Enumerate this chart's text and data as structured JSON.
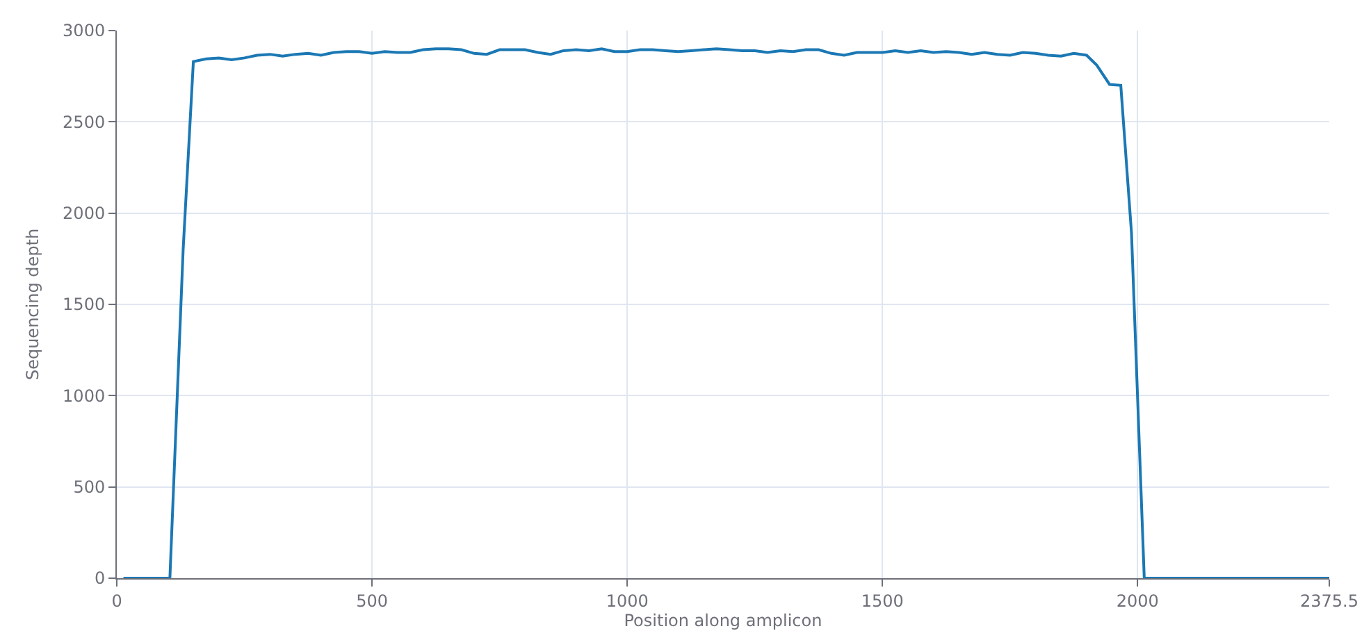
{
  "chart_data": {
    "type": "line",
    "xlabel": "Position along amplicon",
    "ylabel": "Sequencing depth",
    "xlim": [
      0,
      2375.5
    ],
    "ylim": [
      0,
      3000
    ],
    "xticks": [
      0,
      500,
      1000,
      1500,
      2000,
      2375.5
    ],
    "yticks": [
      0,
      500,
      1000,
      1500,
      2000,
      2500,
      3000
    ],
    "grid": true,
    "marker": "none",
    "line_style": "solid",
    "series": [
      {
        "color": "#1b78b4",
        "x": [
          13,
          104,
          130,
          150,
          175,
          200,
          225,
          250,
          275,
          300,
          325,
          350,
          375,
          400,
          425,
          450,
          475,
          500,
          525,
          550,
          575,
          600,
          625,
          650,
          675,
          700,
          725,
          750,
          775,
          800,
          825,
          850,
          875,
          900,
          925,
          950,
          975,
          1000,
          1025,
          1050,
          1075,
          1100,
          1125,
          1150,
          1175,
          1200,
          1225,
          1250,
          1275,
          1300,
          1325,
          1350,
          1375,
          1400,
          1425,
          1450,
          1475,
          1500,
          1525,
          1550,
          1575,
          1600,
          1625,
          1650,
          1675,
          1700,
          1725,
          1750,
          1775,
          1800,
          1825,
          1850,
          1875,
          1900,
          1920,
          1945,
          1967,
          1988,
          2013,
          2375.5
        ],
        "values": [
          0,
          0,
          1800,
          2830,
          2845,
          2850,
          2840,
          2850,
          2865,
          2870,
          2860,
          2870,
          2875,
          2865,
          2880,
          2885,
          2885,
          2875,
          2885,
          2880,
          2880,
          2895,
          2900,
          2900,
          2895,
          2875,
          2870,
          2895,
          2895,
          2895,
          2880,
          2870,
          2890,
          2895,
          2890,
          2900,
          2885,
          2885,
          2895,
          2895,
          2890,
          2885,
          2890,
          2895,
          2900,
          2895,
          2890,
          2890,
          2880,
          2890,
          2885,
          2895,
          2895,
          2875,
          2865,
          2880,
          2880,
          2880,
          2890,
          2880,
          2890,
          2880,
          2885,
          2880,
          2870,
          2880,
          2870,
          2865,
          2880,
          2875,
          2865,
          2860,
          2875,
          2865,
          2810,
          2705,
          2700,
          1890,
          0,
          0
        ]
      }
    ]
  }
}
